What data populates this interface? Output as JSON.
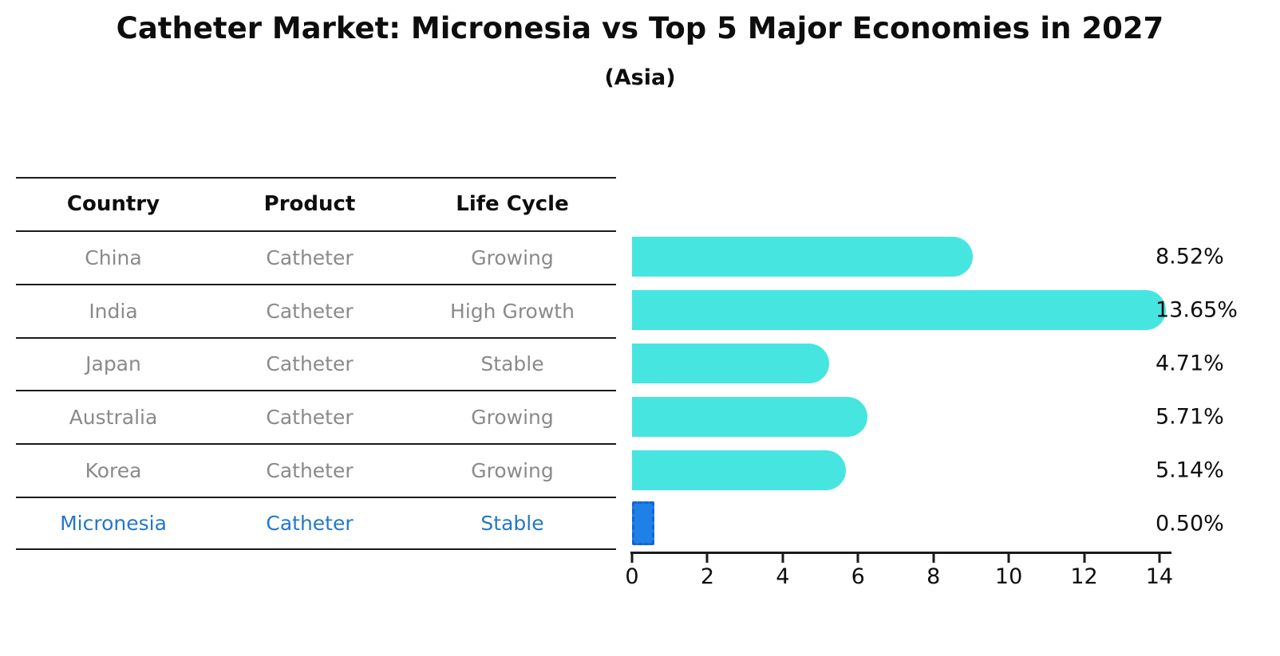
{
  "title": "Catheter Market: Micronesia vs Top 5 Major Economies in 2027",
  "subtitle": "(Asia)",
  "table": {
    "headers": [
      "Country",
      "Product",
      "Life Cycle"
    ],
    "rows": [
      {
        "country": "China",
        "product": "Catheter",
        "life_cycle": "Growing",
        "highlight": false
      },
      {
        "country": "India",
        "product": "Catheter",
        "life_cycle": "High Growth",
        "highlight": false
      },
      {
        "country": "Japan",
        "product": "Catheter",
        "life_cycle": "Stable",
        "highlight": false
      },
      {
        "country": "Australia",
        "product": "Catheter",
        "life_cycle": "Growing",
        "highlight": false
      },
      {
        "country": "Korea",
        "product": "Catheter",
        "life_cycle": "Growing",
        "highlight": false
      },
      {
        "country": "Micronesia",
        "product": "Catheter",
        "life_cycle": "Stable",
        "highlight": true
      }
    ]
  },
  "chart_data": {
    "type": "bar",
    "orientation": "horizontal",
    "title": "Catheter Market: Micronesia vs Top 5 Major Economies in 2027",
    "subtitle": "(Asia)",
    "categories": [
      "China",
      "India",
      "Japan",
      "Australia",
      "Korea",
      "Micronesia"
    ],
    "values": [
      8.52,
      13.65,
      4.71,
      5.71,
      5.14,
      0.5
    ],
    "data_labels": [
      "8.52%",
      "13.65%",
      "4.71%",
      "5.71%",
      "5.14%",
      "0.50%"
    ],
    "xlabel": "",
    "ylabel": "",
    "xlim": [
      0,
      14
    ],
    "xticks": [
      0,
      2,
      4,
      6,
      8,
      10,
      12,
      14
    ],
    "grid": false,
    "legend": false,
    "highlight_index": 5,
    "colors": {
      "bar": "#46e5e0",
      "highlight_bar": "#1f80e6",
      "highlight_bar_border": "#1563d6",
      "highlight_text": "#2478c8",
      "text": "#0d0d0d",
      "muted_text": "#8a8a8a",
      "line": "#1a1a1a"
    }
  }
}
